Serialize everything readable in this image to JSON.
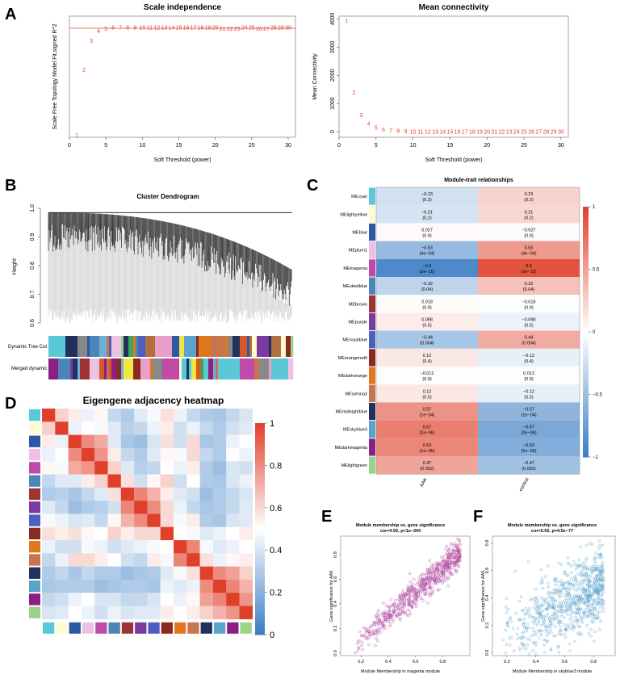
{
  "panel_letters": [
    "A",
    "B",
    "C",
    "D",
    "E",
    "F"
  ],
  "colors": {
    "threshold_line": "#e0402a",
    "point_text": "#e0402a",
    "neg": "#3a7dc4",
    "pos": "#e0402a"
  },
  "chart_data": [
    {
      "id": "scale",
      "type": "scatter",
      "title": "Scale independence",
      "xlabel": "Soft Threshold (power)",
      "ylabel": "Scale Free Topology Model Fit,signed R^2",
      "xlim": [
        0,
        31
      ],
      "ylim": [
        0,
        1
      ],
      "xticks": [
        0,
        5,
        10,
        15,
        20,
        25,
        30
      ],
      "hline": 0.9,
      "x": [
        1,
        2,
        3,
        4,
        5,
        6,
        7,
        8,
        9,
        10,
        11,
        12,
        13,
        14,
        15,
        16,
        17,
        18,
        19,
        20,
        21,
        22,
        23,
        24,
        25,
        26,
        27,
        28,
        29,
        30
      ],
      "y": [
        0.02,
        0.56,
        0.8,
        0.88,
        0.9,
        0.91,
        0.91,
        0.91,
        0.91,
        0.91,
        0.91,
        0.91,
        0.91,
        0.91,
        0.91,
        0.91,
        0.91,
        0.91,
        0.91,
        0.91,
        0.9,
        0.9,
        0.9,
        0.91,
        0.91,
        0.9,
        0.9,
        0.91,
        0.91,
        0.91
      ]
    },
    {
      "id": "conn",
      "type": "scatter",
      "title": "Mean connectivity",
      "xlabel": "Soft Threshold (power)",
      "ylabel": "Mean Connectivity",
      "xlim": [
        0,
        31
      ],
      "ylim": [
        -200,
        4100
      ],
      "xticks": [
        0,
        5,
        10,
        15,
        20,
        25,
        30
      ],
      "yticks": [
        0,
        1000,
        2000,
        3000,
        4000
      ],
      "x": [
        1,
        2,
        3,
        4,
        5,
        6,
        7,
        8,
        9,
        10,
        11,
        12,
        13,
        14,
        15,
        16,
        17,
        18,
        19,
        20,
        21,
        22,
        23,
        24,
        25,
        26,
        27,
        28,
        29,
        30
      ],
      "y": [
        3950,
        1400,
        600,
        300,
        160,
        90,
        60,
        40,
        30,
        20,
        20,
        15,
        15,
        12,
        12,
        10,
        10,
        10,
        10,
        10,
        10,
        10,
        10,
        10,
        10,
        10,
        10,
        10,
        10,
        10
      ]
    },
    {
      "id": "dendro",
      "type": "dendrogram",
      "title": "Cluster Dendrogram",
      "ylabel": "Height",
      "ylim": [
        0.6,
        1.0
      ],
      "yticks": [
        0.6,
        0.7,
        0.8,
        0.9,
        1.0
      ],
      "row_labels": [
        "Dynamic Tree Cut",
        "Merged dynamic"
      ]
    },
    {
      "id": "modtrait",
      "type": "heatmap",
      "title": "Module-trait relationships",
      "columns": [
        "AAK",
        "control"
      ],
      "legend_ticks": [
        "1",
        "0.5",
        "0",
        "−0.5",
        "−1"
      ],
      "rows": [
        {
          "name": "MEcyan",
          "color": "#5bc8d8",
          "cells": [
            [
              "−0.23",
              "(0.2)",
              -0.23
            ],
            [
              "0.23",
              "(0.2)",
              0.23
            ]
          ]
        },
        {
          "name": "MElightyellow",
          "color": "#fdfbd0",
          "cells": [
            [
              "−0.21",
              "(0.2)",
              -0.21
            ],
            [
              "0.21",
              "(0.2)",
              0.21
            ]
          ]
        },
        {
          "name": "MEblue",
          "color": "#2e57a6",
          "cells": [
            [
              "0.027",
              "(0.9)",
              0.027
            ],
            [
              "−0.027",
              "(0.9)",
              -0.027
            ]
          ]
        },
        {
          "name": "MEplum1",
          "color": "#ecc1e3",
          "cells": [
            [
              "−0.53",
              "(4e−04)",
              -0.53
            ],
            [
              "0.53",
              "(4e−04)",
              0.53
            ]
          ]
        },
        {
          "name": "MEmagenta",
          "color": "#c04aa8",
          "cells": [
            [
              "−0.9",
              "(2e−15)",
              -0.9
            ],
            [
              "0.9",
              "(2e−15)",
              0.9
            ]
          ]
        },
        {
          "name": "MEsteelblue",
          "color": "#4b86b8",
          "cells": [
            [
              "−0.32",
              "(0.04)",
              -0.32
            ],
            [
              "0.32",
              "(0.04)",
              0.32
            ]
          ]
        },
        {
          "name": "MEbrown",
          "color": "#9e3434",
          "cells": [
            [
              "0.018",
              "(0.9)",
              0.018
            ],
            [
              "−0.018",
              "(0.9)",
              -0.018
            ]
          ]
        },
        {
          "name": "MEpurple",
          "color": "#7a3aa0",
          "cells": [
            [
              "0.098",
              "(0.5)",
              0.098
            ],
            [
              "−0.098",
              "(0.5)",
              -0.098
            ]
          ]
        },
        {
          "name": "MEroyalblue",
          "color": "#4a5fc0",
          "cells": [
            [
              "−0.44",
              "(0.004)",
              -0.44
            ],
            [
              "0.44",
              "(0.004)",
              0.44
            ]
          ]
        },
        {
          "name": "MEorangered4",
          "color": "#8a2a22",
          "cells": [
            [
              "0.12",
              "(0.4)",
              0.12
            ],
            [
              "−0.12",
              "(0.4)",
              -0.12
            ]
          ]
        },
        {
          "name": "MEdarkorange",
          "color": "#e2781e",
          "cells": [
            [
              "−0.012",
              "(0.9)",
              -0.012
            ],
            [
              "0.012",
              "(0.9)",
              0.012
            ]
          ]
        },
        {
          "name": "MEsienna3",
          "color": "#c8754f",
          "cells": [
            [
              "0.12",
              "(0.5)",
              0.12
            ],
            [
              "−0.12",
              "(0.5)",
              -0.12
            ]
          ]
        },
        {
          "name": "MEmidnightblue",
          "color": "#22305e",
          "cells": [
            [
              "0.57",
              "(1e−04)",
              0.57
            ],
            [
              "−0.57",
              "(1e−04)",
              -0.57
            ]
          ]
        },
        {
          "name": "MEskyblue3",
          "color": "#5aa4cc",
          "cells": [
            [
              "0.67",
              "(2e−06)",
              0.67
            ],
            [
              "−0.67",
              "(2e−06)",
              -0.67
            ]
          ]
        },
        {
          "name": "MEdarkmagenta",
          "color": "#8b1f85",
          "cells": [
            [
              "0.63",
              "(1e−05)",
              0.63
            ],
            [
              "−0.63",
              "(1e−05)",
              -0.63
            ]
          ]
        },
        {
          "name": "MElightgreen",
          "color": "#9ad38a",
          "cells": [
            [
              "0.47",
              "(0.002)",
              0.47
            ],
            [
              "−0.47",
              "(0.002)",
              -0.47
            ]
          ]
        }
      ]
    },
    {
      "id": "adjacency",
      "type": "heatmap",
      "title": "Eigengene adjacency heatmap",
      "legend_ticks": [
        "1",
        "0.8",
        "0.6",
        "0.4",
        "0.2",
        "0"
      ],
      "module_colors": [
        "#5bc8d8",
        "#fdfbd0",
        "#2e57a6",
        "#ecc1e3",
        "#c04aa8",
        "#4b86b8",
        "#9e3434",
        "#7a3aa0",
        "#4a5fc0",
        "#8a2a22",
        "#e2781e",
        "#c8754f",
        "#22305e",
        "#5aa4cc",
        "#8b1f85",
        "#9ad38a"
      ],
      "matrix": [
        [
          1,
          0.62,
          0.55,
          0.45,
          0.52,
          0.35,
          0.3,
          0.42,
          0.48,
          0.58,
          0.45,
          0.35,
          0.3,
          0.28,
          0.35,
          0.4
        ],
        [
          0.62,
          1,
          0.45,
          0.5,
          0.48,
          0.42,
          0.32,
          0.35,
          0.45,
          0.55,
          0.38,
          0.45,
          0.35,
          0.3,
          0.38,
          0.42
        ],
        [
          0.55,
          0.45,
          1,
          0.8,
          0.72,
          0.42,
          0.28,
          0.25,
          0.4,
          0.58,
          0.38,
          0.6,
          0.28,
          0.3,
          0.45,
          0.5
        ],
        [
          0.45,
          0.5,
          0.8,
          1,
          0.78,
          0.55,
          0.35,
          0.3,
          0.42,
          0.52,
          0.48,
          0.6,
          0.35,
          0.3,
          0.5,
          0.45
        ],
        [
          0.52,
          0.48,
          0.72,
          0.78,
          1,
          0.62,
          0.42,
          0.32,
          0.35,
          0.5,
          0.45,
          0.55,
          0.3,
          0.25,
          0.4,
          0.38
        ],
        [
          0.35,
          0.42,
          0.42,
          0.55,
          0.62,
          1,
          0.58,
          0.38,
          0.52,
          0.62,
          0.38,
          0.5,
          0.3,
          0.28,
          0.4,
          0.45
        ],
        [
          0.3,
          0.32,
          0.28,
          0.35,
          0.42,
          0.58,
          1,
          0.82,
          0.7,
          0.55,
          0.42,
          0.38,
          0.25,
          0.3,
          0.35,
          0.4
        ],
        [
          0.42,
          0.35,
          0.25,
          0.3,
          0.32,
          0.38,
          0.82,
          1,
          0.8,
          0.6,
          0.45,
          0.35,
          0.28,
          0.3,
          0.35,
          0.42
        ],
        [
          0.48,
          0.45,
          0.4,
          0.42,
          0.35,
          0.52,
          0.7,
          0.8,
          1,
          0.6,
          0.48,
          0.55,
          0.3,
          0.28,
          0.4,
          0.42
        ],
        [
          0.58,
          0.55,
          0.58,
          0.52,
          0.5,
          0.62,
          0.55,
          0.6,
          0.6,
          1,
          0.5,
          0.48,
          0.42,
          0.45,
          0.5,
          0.55
        ],
        [
          0.45,
          0.38,
          0.38,
          0.48,
          0.45,
          0.38,
          0.42,
          0.45,
          0.48,
          0.5,
          1,
          0.82,
          0.48,
          0.42,
          0.45,
          0.5
        ],
        [
          0.35,
          0.45,
          0.6,
          0.6,
          0.55,
          0.5,
          0.38,
          0.35,
          0.55,
          0.48,
          0.82,
          1,
          0.58,
          0.45,
          0.52,
          0.55
        ],
        [
          0.3,
          0.35,
          0.28,
          0.35,
          0.3,
          0.3,
          0.25,
          0.28,
          0.3,
          0.42,
          0.48,
          0.58,
          1,
          0.8,
          0.75,
          0.62
        ],
        [
          0.28,
          0.3,
          0.3,
          0.3,
          0.25,
          0.28,
          0.3,
          0.3,
          0.28,
          0.45,
          0.42,
          0.45,
          0.8,
          1,
          0.82,
          0.7
        ],
        [
          0.35,
          0.38,
          0.45,
          0.5,
          0.4,
          0.4,
          0.35,
          0.35,
          0.4,
          0.5,
          0.45,
          0.52,
          0.75,
          0.82,
          1,
          0.78
        ],
        [
          0.4,
          0.42,
          0.5,
          0.45,
          0.38,
          0.45,
          0.4,
          0.42,
          0.42,
          0.55,
          0.5,
          0.55,
          0.62,
          0.7,
          0.78,
          1
        ]
      ]
    },
    {
      "id": "mmE",
      "type": "scatter",
      "title": "Module membership vs. gene significance",
      "subtitle": "cor=0.92, p<1e−200",
      "xlabel": "Module Membership in magenta module",
      "ylabel": "Gene significance for  AAK",
      "xlim": [
        0.05,
        1.0
      ],
      "ylim": [
        -0.02,
        0.95
      ],
      "xticks": [
        0.2,
        0.4,
        0.6,
        0.8
      ],
      "yticks": [
        0.0,
        0.2,
        0.4,
        0.6,
        0.8
      ],
      "cor": 0.92,
      "n_points": 700,
      "color": "#b04aa0"
    },
    {
      "id": "mmF",
      "type": "scatter",
      "title": "Module membership vs. gene significance",
      "subtitle": "cor=0.55, p=4.5e−77",
      "xlabel": "Module Membership in skyblue3 module",
      "ylabel": "Gene significance for  AAK",
      "xlim": [
        0.1,
        0.95
      ],
      "ylim": [
        -0.02,
        0.85
      ],
      "xticks": [
        0.2,
        0.4,
        0.6,
        0.8
      ],
      "yticks": [
        0.0,
        0.2,
        0.4,
        0.6,
        0.8
      ],
      "cor": 0.55,
      "n_points": 800,
      "color": "#5aa4cc"
    }
  ]
}
